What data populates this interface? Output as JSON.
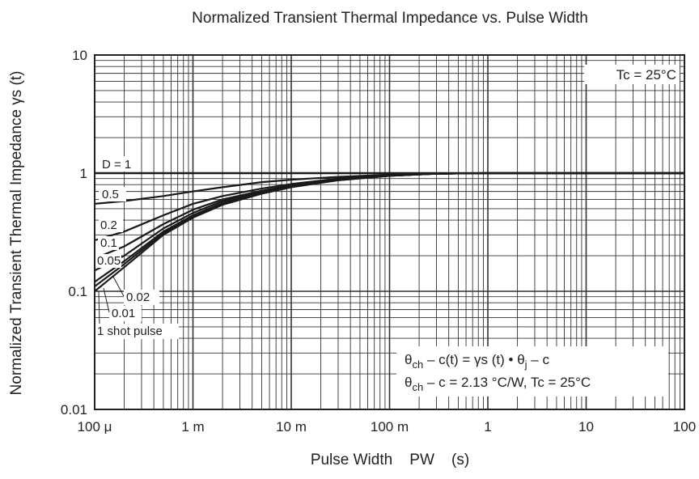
{
  "chart_data": {
    "type": "line",
    "title": "Normalized Transient Thermal Impedance vs. Pulse Width",
    "xlabel": "Pulse Width    PW    (s)",
    "ylabel": "Normalized Transient Thermal Impedance    γs  (t)",
    "x_scale": "log",
    "y_scale": "log",
    "xlim": [
      0.0001,
      100
    ],
    "ylim": [
      0.01,
      10
    ],
    "grid": true,
    "x_ticks": [
      {
        "value": 0.0001,
        "label": "100 μ"
      },
      {
        "value": 0.001,
        "label": "1 m"
      },
      {
        "value": 0.01,
        "label": "10 m"
      },
      {
        "value": 0.1,
        "label": "100 m"
      },
      {
        "value": 1,
        "label": "1"
      },
      {
        "value": 10,
        "label": "10"
      },
      {
        "value": 100,
        "label": "100"
      }
    ],
    "y_ticks": [
      {
        "value": 0.01,
        "label": "0.01"
      },
      {
        "value": 0.1,
        "label": "0.1"
      },
      {
        "value": 1,
        "label": "1"
      },
      {
        "value": 10,
        "label": "10"
      }
    ],
    "series": [
      {
        "name": "D = 1",
        "x": [
          0.0001,
          100
        ],
        "y": [
          1.0,
          1.0
        ]
      },
      {
        "name": "0.5",
        "x": [
          0.0001,
          0.0002,
          0.0005,
          0.001,
          0.002,
          0.005,
          0.01,
          0.03,
          0.1,
          0.3,
          1,
          100
        ],
        "y": [
          0.55,
          0.58,
          0.64,
          0.7,
          0.76,
          0.84,
          0.88,
          0.93,
          0.97,
          0.99,
          1.0,
          1.0
        ]
      },
      {
        "name": "0.2",
        "x": [
          0.0001,
          0.0002,
          0.0005,
          0.001,
          0.002,
          0.005,
          0.01,
          0.03,
          0.1,
          0.3,
          1,
          100
        ],
        "y": [
          0.27,
          0.32,
          0.44,
          0.55,
          0.64,
          0.74,
          0.81,
          0.9,
          0.96,
          0.99,
          1.0,
          1.0
        ]
      },
      {
        "name": "0.1",
        "x": [
          0.0001,
          0.0002,
          0.0005,
          0.001,
          0.002,
          0.005,
          0.01,
          0.03,
          0.1,
          0.3,
          1,
          100
        ],
        "y": [
          0.19,
          0.24,
          0.37,
          0.49,
          0.6,
          0.71,
          0.79,
          0.89,
          0.96,
          0.99,
          1.0,
          1.0
        ]
      },
      {
        "name": "0.05",
        "x": [
          0.0001,
          0.0002,
          0.0005,
          0.001,
          0.002,
          0.005,
          0.01,
          0.03,
          0.1,
          0.3,
          1,
          100
        ],
        "y": [
          0.15,
          0.2,
          0.34,
          0.46,
          0.58,
          0.7,
          0.78,
          0.88,
          0.95,
          0.99,
          1.0,
          1.0
        ]
      },
      {
        "name": "0.02",
        "x": [
          0.0001,
          0.0002,
          0.0005,
          0.001,
          0.002,
          0.005,
          0.01,
          0.03,
          0.1,
          0.3,
          1,
          100
        ],
        "y": [
          0.12,
          0.18,
          0.32,
          0.44,
          0.56,
          0.69,
          0.77,
          0.88,
          0.95,
          0.99,
          1.0,
          1.0
        ]
      },
      {
        "name": "0.01",
        "x": [
          0.0001,
          0.0002,
          0.0005,
          0.001,
          0.002,
          0.005,
          0.01,
          0.03,
          0.1,
          0.3,
          1,
          100
        ],
        "y": [
          0.11,
          0.17,
          0.31,
          0.43,
          0.55,
          0.68,
          0.77,
          0.87,
          0.95,
          0.99,
          1.0,
          1.0
        ]
      },
      {
        "name": "1 shot pulse",
        "x": [
          0.0001,
          0.0002,
          0.0005,
          0.001,
          0.002,
          0.005,
          0.01,
          0.03,
          0.1,
          0.3,
          1,
          100
        ],
        "y": [
          0.1,
          0.16,
          0.3,
          0.42,
          0.54,
          0.67,
          0.76,
          0.87,
          0.95,
          0.99,
          1.0,
          1.0
        ]
      }
    ],
    "annotations": {
      "tc": "Tc = 25°C",
      "formula1": {
        "a": "θ",
        "a_sub": "ch",
        "b": " – c(t) = γs (t) • θ",
        "b_sub": "j",
        "c": " – c"
      },
      "formula2": {
        "a": "θ",
        "a_sub": "ch",
        "b": " – c = 2.13 °C/W, Tc = 25°C"
      }
    }
  }
}
